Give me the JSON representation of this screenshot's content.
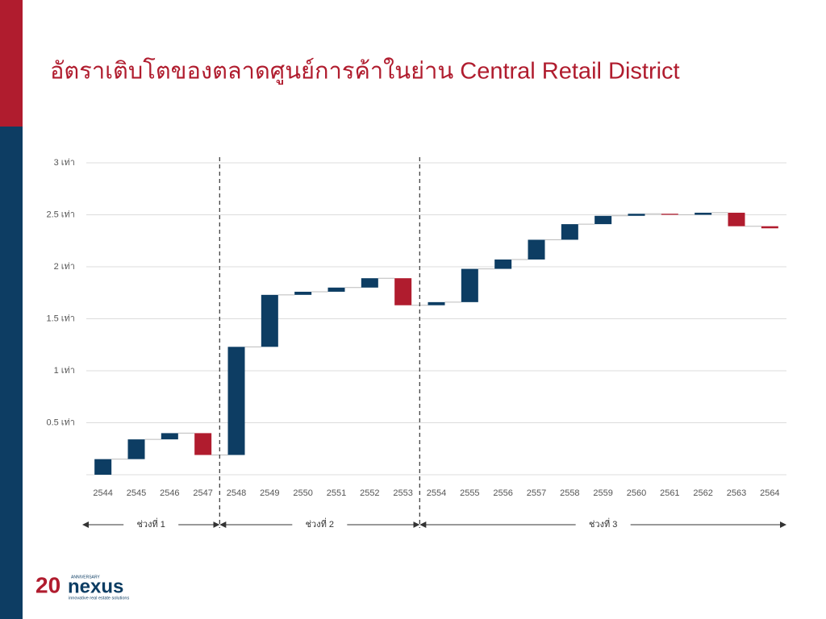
{
  "chart_data": {
    "type": "waterfall",
    "title": "อัตราเติบโตของตลาดศูนย์การค้าในย่าน Central Retail District",
    "categories": [
      "2544",
      "2545",
      "2546",
      "2547",
      "2548",
      "2549",
      "2550",
      "2551",
      "2552",
      "2553",
      "2554",
      "2555",
      "2556",
      "2557",
      "2558",
      "2559",
      "2560",
      "2561",
      "2562",
      "2563",
      "2564"
    ],
    "values": [
      0.15,
      0.19,
      0.06,
      -0.21,
      1.04,
      0.5,
      0.03,
      0.04,
      0.09,
      -0.26,
      0.03,
      0.32,
      0.09,
      0.19,
      0.15,
      0.08,
      0.02,
      -0.01,
      0.02,
      -0.13,
      -0.02
    ],
    "positive_color": "#0d3d63",
    "negative_color": "#b01c2e",
    "ylim": [
      0,
      3
    ],
    "yticks": [
      {
        "value": 0.5,
        "label": "0.5 เท่า"
      },
      {
        "value": 1,
        "label": "1 เท่า"
      },
      {
        "value": 1.5,
        "label": "1.5 เท่า"
      },
      {
        "value": 2,
        "label": "2 เท่า"
      },
      {
        "value": 2.5,
        "label": "2.5 เท่า"
      },
      {
        "value": 3,
        "label": "3 เท่า"
      }
    ],
    "grid": true,
    "periods": [
      {
        "label": "ช่วงที่ 1",
        "from": "2544",
        "to": "2547"
      },
      {
        "label": "ช่วงที่ 2",
        "from": "2548",
        "to": "2553"
      },
      {
        "label": "ช่วงที่ 3",
        "from": "2554",
        "to": "2564"
      }
    ]
  },
  "logo": {
    "number": "20",
    "badge": "ANNIVERSARY",
    "name": "nexus",
    "tagline": "innovative real estate solutions"
  }
}
